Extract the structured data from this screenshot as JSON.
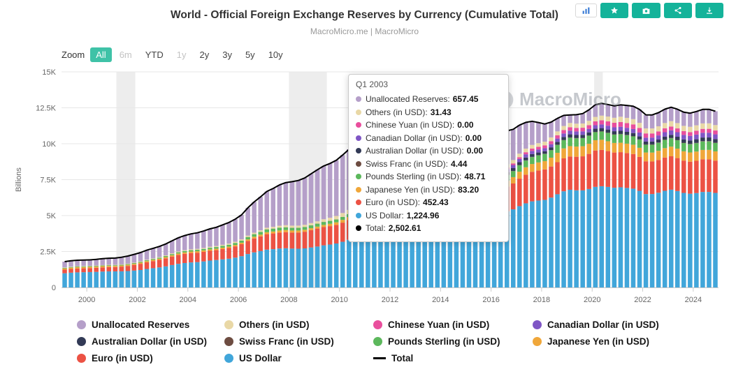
{
  "header": {
    "title": "World - Official Foreign Exchange Reserves by Currency (Cumulative Total)",
    "subtitle": "MacroMicro.me | MacroMicro"
  },
  "watermark": {
    "text": "MacroMicro"
  },
  "toolbar": {
    "buttons": [
      {
        "name": "chart-type-button",
        "icon": "chart-bars",
        "style": "light"
      },
      {
        "name": "follow-button",
        "icon": "star",
        "style": "teal"
      },
      {
        "name": "snapshot-button",
        "icon": "camera",
        "style": "teal"
      },
      {
        "name": "share-button",
        "icon": "share",
        "style": "teal"
      },
      {
        "name": "download-button",
        "icon": "download",
        "style": "teal"
      }
    ]
  },
  "zoom": {
    "label": "Zoom",
    "options": [
      {
        "label": "All",
        "selected": true
      },
      {
        "label": "6m",
        "muted": true
      },
      {
        "label": "YTD"
      },
      {
        "label": "1y",
        "muted": true
      },
      {
        "label": "2y"
      },
      {
        "label": "3y"
      },
      {
        "label": "5y"
      },
      {
        "label": "10y"
      }
    ]
  },
  "tooltip": {
    "title": "Q1 2003",
    "rows": [
      {
        "label": "Unallocated Reserves",
        "value": "657.45",
        "color": "#b59fc9"
      },
      {
        "label": "Others (in USD)",
        "value": "31.43",
        "color": "#e9d8a6"
      },
      {
        "label": "Chinese Yuan (in USD)",
        "value": "0.00",
        "color": "#e94f9d"
      },
      {
        "label": "Canadian Dollar (in USD)",
        "value": "0.00",
        "color": "#7f56c5"
      },
      {
        "label": "Australian Dollar (in USD)",
        "value": "0.00",
        "color": "#323a56"
      },
      {
        "label": "Swiss Franc (in USD)",
        "value": "4.44",
        "color": "#6d4c41"
      },
      {
        "label": "Pounds Sterling (in USD)",
        "value": "48.71",
        "color": "#5cb85c"
      },
      {
        "label": "Japanese Yen (in USD)",
        "value": "83.20",
        "color": "#f0a73a"
      },
      {
        "label": "Euro (in USD)",
        "value": "452.43",
        "color": "#ec5244"
      },
      {
        "label": "US Dollar",
        "value": "1,224.96",
        "color": "#41a6da"
      },
      {
        "label": "Total",
        "value": "2,502.61",
        "color": "#000000"
      }
    ]
  },
  "legend": {
    "items": [
      {
        "label": "Unallocated Reserves",
        "color": "#b59fc9",
        "marker": "circle"
      },
      {
        "label": "Others (in USD)",
        "color": "#e9d8a6",
        "marker": "circle"
      },
      {
        "label": "Chinese Yuan (in USD)",
        "color": "#e94f9d",
        "marker": "circle"
      },
      {
        "label": "Canadian Dollar (in USD)",
        "color": "#7f56c5",
        "marker": "circle"
      },
      {
        "label": "Australian Dollar (in USD)",
        "color": "#323a56",
        "marker": "circle"
      },
      {
        "label": "Swiss Franc (in USD)",
        "color": "#6d4c41",
        "marker": "circle"
      },
      {
        "label": "Pounds Sterling (in USD)",
        "color": "#5cb85c",
        "marker": "circle"
      },
      {
        "label": "Japanese Yen (in USD)",
        "color": "#f0a73a",
        "marker": "circle"
      },
      {
        "label": "Euro (in USD)",
        "color": "#ec5244",
        "marker": "circle"
      },
      {
        "label": "US Dollar",
        "color": "#41a6da",
        "marker": "circle"
      },
      {
        "label": "Total",
        "color": "#000000",
        "marker": "line"
      }
    ]
  },
  "chart_data": {
    "type": "stacked-bar-with-total-line",
    "title": "World - Official Foreign Exchange Reserves by Currency (Cumulative Total)",
    "unit": "USD Billions",
    "ylabel": "Billions",
    "ylim": [
      0,
      15000
    ],
    "x_range": [
      1999,
      2025
    ],
    "bars_per_year": 4,
    "band_color": "#ededed",
    "x_years": [
      1999,
      2000,
      2001,
      2002,
      2003,
      2004,
      2005,
      2006,
      2007,
      2008,
      2009,
      2010,
      2011,
      2012,
      2013,
      2014,
      2015,
      2016,
      2017,
      2018,
      2019,
      2020,
      2021,
      2022,
      2023,
      2024
    ],
    "y_ticks": [
      {
        "value": 0,
        "label": "0"
      },
      {
        "value": 2500,
        "label": "2.5K"
      },
      {
        "value": 5000,
        "label": "5K"
      },
      {
        "value": 7500,
        "label": "7.5K"
      },
      {
        "value": 10000,
        "label": "10K"
      },
      {
        "value": 12500,
        "label": "12.5K"
      },
      {
        "value": 15000,
        "label": "15K"
      }
    ],
    "x_ticks": [
      {
        "value": 2000,
        "label": "2000"
      },
      {
        "value": 2002,
        "label": "2002"
      },
      {
        "value": 2004,
        "label": "2004"
      },
      {
        "value": 2006,
        "label": "2006"
      },
      {
        "value": 2008,
        "label": "2008"
      },
      {
        "value": 2010,
        "label": "2010"
      },
      {
        "value": 2012,
        "label": "2012"
      },
      {
        "value": 2014,
        "label": "2014"
      },
      {
        "value": 2016,
        "label": "2016"
      },
      {
        "value": 2018,
        "label": "2018"
      },
      {
        "value": 2020,
        "label": "2020"
      },
      {
        "value": 2022,
        "label": "2022"
      },
      {
        "value": 2024,
        "label": "2024"
      }
    ],
    "shaded_regions": [
      [
        2001.17,
        2001.92
      ],
      [
        2008.0,
        2009.5
      ],
      [
        2020.08,
        2020.42
      ]
    ],
    "series": [
      {
        "name": "US Dollar",
        "color": "#41a6da",
        "values": [
          980,
          1080,
          1122,
          1205,
          1466,
          1751,
          1903,
          2171,
          2642,
          2699,
          2837,
          3193,
          3526,
          3730,
          3806,
          3824,
          3842,
          5053,
          5721,
          6123,
          6700,
          6991,
          7087,
          6471,
          6687,
          6630
        ]
      },
      {
        "name": "Euro (in USD)",
        "color": "#ec5244",
        "values": [
          247,
          277,
          301,
          427,
          559,
          659,
          684,
          832,
          1082,
          1112,
          1246,
          1339,
          1398,
          1448,
          1531,
          1350,
          1346,
          1559,
          1933,
          2131,
          2280,
          2526,
          2487,
          2271,
          2287,
          2266
        ]
      },
      {
        "name": "Japanese Yen (in USD)",
        "color": "#f0a73a",
        "values": [
          88,
          92,
          79,
          78,
          88,
          102,
          102,
          102,
          131,
          146,
          136,
          193,
          212,
          227,
          221,
          203,
          222,
          333,
          490,
          583,
          710,
          715,
          666,
          610,
          659,
          650
        ]
      },
      {
        "name": "Pounds Sterling (in USD)",
        "color": "#5cb85c",
        "values": [
          40,
          45,
          44,
          50,
          70,
          94,
          112,
          145,
          199,
          183,
          202,
          203,
          222,
          228,
          230,
          232,
          217,
          349,
          454,
          499,
          580,
          560,
          604,
          539,
          572,
          588
        ]
      },
      {
        "name": "Swiss Franc (in USD)",
        "color": "#6d4c41",
        "values": [
          2,
          3,
          3,
          4,
          4,
          4,
          4,
          5,
          7,
          6,
          5,
          6,
          5,
          8,
          8,
          8,
          9,
          14,
          16,
          15,
          18,
          21,
          22,
          23,
          25,
          25
        ]
      },
      {
        "name": "Australian Dollar (in USD)",
        "color": "#323a56",
        "values": [
          0,
          0,
          0,
          0,
          0,
          0,
          0,
          0,
          0,
          0,
          0,
          0,
          0,
          90,
          104,
          113,
          117,
          187,
          200,
          180,
          210,
          216,
          218,
          196,
          211,
          250
        ]
      },
      {
        "name": "Canadian Dollar (in USD)",
        "color": "#7f56c5",
        "values": [
          0,
          0,
          0,
          0,
          0,
          0,
          0,
          0,
          0,
          0,
          0,
          0,
          0,
          94,
          115,
          118,
          121,
          204,
          227,
          208,
          250,
          246,
          287,
          267,
          307,
          330
        ]
      },
      {
        "name": "Chinese Yuan (in USD)",
        "color": "#e94f9d",
        "values": [
          0,
          0,
          0,
          0,
          0,
          0,
          0,
          0,
          0,
          0,
          0,
          0,
          0,
          0,
          0,
          0,
          0,
          91,
          124,
          203,
          240,
          267,
          337,
          298,
          262,
          270
        ]
      },
      {
        "name": "Others (in USD)",
        "color": "#e9d8a6",
        "values": [
          25,
          27,
          30,
          35,
          47,
          60,
          70,
          85,
          110,
          148,
          162,
          270,
          330,
          166,
          190,
          200,
          180,
          220,
          246,
          253,
          290,
          310,
          372,
          345,
          365,
          380
        ]
      },
      {
        "name": "Unallocated Reserves",
        "color": "#b59fc9",
        "values": [
          400,
          412,
          471,
          609,
          791,
          1078,
          1299,
          1697,
          2533,
          3052,
          3577,
          4054,
          4512,
          4961,
          5469,
          5542,
          4871,
          2704,
          2013,
          1240,
          549,
          848,
          840,
          940,
          955,
          971
        ]
      }
    ],
    "total": {
      "name": "Total",
      "color": "#000000",
      "values": [
        1782,
        1936,
        2050,
        2408,
        3025,
        3748,
        4174,
        5037,
        6704,
        7346,
        8165,
        9258,
        10205,
        10952,
        11674,
        11590,
        10925,
        10714,
        11424,
        11435,
        11827,
        12700,
        12920,
        11960,
        12330,
        12360
      ]
    }
  }
}
